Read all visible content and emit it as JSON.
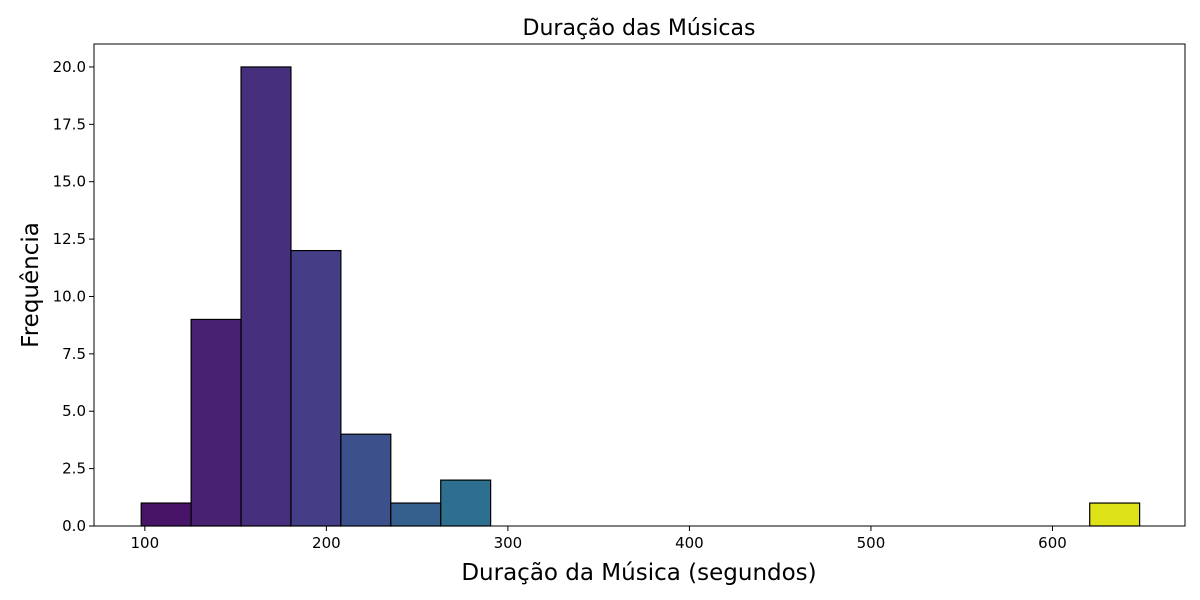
{
  "chart_data": {
    "type": "bar",
    "title": "Duração das Músicas",
    "xlabel": "Duração da Música (segundos)",
    "ylabel": "Frequência",
    "xlim": [
      72,
      673
    ],
    "ylim": [
      0,
      21
    ],
    "bins": [
      {
        "x0": 98,
        "x1": 125.5,
        "count": 1,
        "color": "#481467"
      },
      {
        "x0": 125.5,
        "x1": 153,
        "count": 9,
        "color": "#482172"
      },
      {
        "x0": 153,
        "x1": 180.5,
        "count": 20,
        "color": "#46307E"
      },
      {
        "x0": 180.5,
        "x1": 208,
        "count": 12,
        "color": "#433E85"
      },
      {
        "x0": 208,
        "x1": 235.5,
        "count": 4,
        "color": "#3C508B"
      },
      {
        "x0": 235.5,
        "x1": 263,
        "count": 1,
        "color": "#355F8D"
      },
      {
        "x0": 263,
        "x1": 290.5,
        "count": 2,
        "color": "#2E6E8E"
      },
      {
        "x0": 290.5,
        "x1": 318,
        "count": 0,
        "color": "#297B8E"
      },
      {
        "x0": 318,
        "x1": 345.5,
        "count": 0,
        "color": "#24878E"
      },
      {
        "x0": 345.5,
        "x1": 373,
        "count": 0,
        "color": "#21918C"
      },
      {
        "x0": 373,
        "x1": 400.5,
        "count": 0,
        "color": "#1F9E89"
      },
      {
        "x0": 400.5,
        "x1": 428,
        "count": 0,
        "color": "#22A884"
      },
      {
        "x0": 428,
        "x1": 455.5,
        "count": 0,
        "color": "#2CB17E"
      },
      {
        "x0": 455.5,
        "x1": 483,
        "count": 0,
        "color": "#3BBB75"
      },
      {
        "x0": 483,
        "x1": 510.5,
        "count": 0,
        "color": "#4EC36B"
      },
      {
        "x0": 510.5,
        "x1": 538,
        "count": 0,
        "color": "#67CC5C"
      },
      {
        "x0": 538,
        "x1": 565.5,
        "count": 0,
        "color": "#7FD34E"
      },
      {
        "x0": 565.5,
        "x1": 593,
        "count": 0,
        "color": "#9CD93B"
      },
      {
        "x0": 593,
        "x1": 620.5,
        "count": 0,
        "color": "#B8DE29"
      },
      {
        "x0": 620.5,
        "x1": 648,
        "count": 1,
        "color": "#DDE318"
      }
    ],
    "xticks": [
      {
        "value": 100,
        "label": "100"
      },
      {
        "value": 200,
        "label": "200"
      },
      {
        "value": 300,
        "label": "300"
      },
      {
        "value": 400,
        "label": "400"
      },
      {
        "value": 500,
        "label": "500"
      },
      {
        "value": 600,
        "label": "600"
      }
    ],
    "yticks": [
      {
        "value": 0,
        "label": "0.0"
      },
      {
        "value": 2.5,
        "label": "2.5"
      },
      {
        "value": 5,
        "label": "5.0"
      },
      {
        "value": 7.5,
        "label": "7.5"
      },
      {
        "value": 10,
        "label": "10.0"
      },
      {
        "value": 12.5,
        "label": "12.5"
      },
      {
        "value": 15,
        "label": "15.0"
      },
      {
        "value": 17.5,
        "label": "17.5"
      },
      {
        "value": 20,
        "label": "20.0"
      }
    ],
    "grid": false,
    "edge_color": "#000000"
  }
}
